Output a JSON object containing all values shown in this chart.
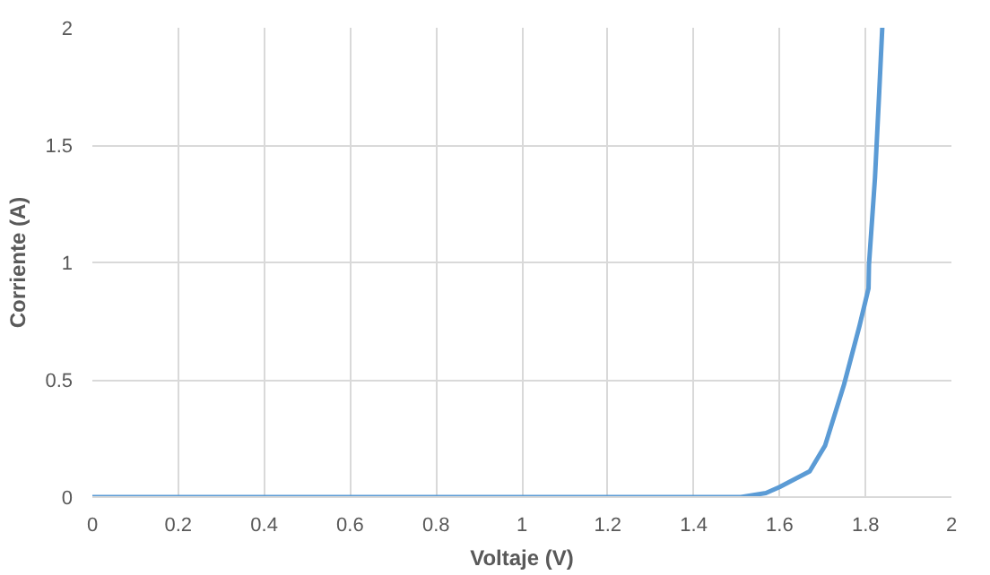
{
  "chart_data": {
    "type": "line",
    "xlabel": "Voltaje (V)",
    "ylabel": "Corriente (A)",
    "x": [
      0,
      0.5,
      1,
      1.4,
      1.51,
      1.568,
      1.6,
      1.67,
      1.706,
      1.75,
      1.786,
      1.807,
      1.808,
      1.822,
      1.832,
      1.839
    ],
    "series": [
      {
        "color": "#5b9bd5",
        "values": [
          0,
          0,
          0,
          0,
          0,
          0.017,
          0.043,
          0.11,
          0.22,
          0.48,
          0.73,
          0.89,
          0.99,
          1.36,
          1.73,
          2.0
        ]
      }
    ],
    "xlim": [
      0,
      2
    ],
    "ylim": [
      0,
      2
    ],
    "xticks": [
      0,
      0.2,
      0.4,
      0.6,
      0.8,
      1,
      1.2,
      1.4,
      1.6,
      1.8,
      2
    ],
    "yticks": [
      0,
      0.5,
      1,
      1.5,
      2
    ],
    "grid": true,
    "marker": "none",
    "line_style": "solid"
  }
}
